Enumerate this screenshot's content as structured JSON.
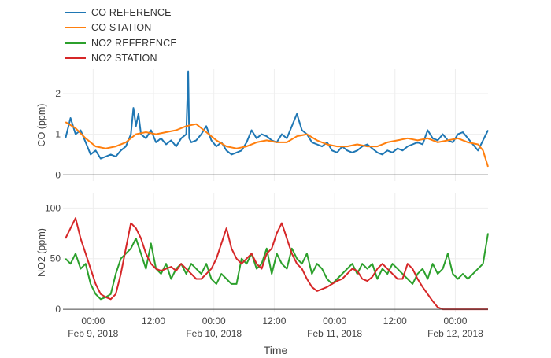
{
  "legend": [
    {
      "label": "CO REFERENCE",
      "color": "#1f77b4"
    },
    {
      "label": "CO STATION",
      "color": "#ff7f0e"
    },
    {
      "label": "NO2 REFERENCE",
      "color": "#2ca02c"
    },
    {
      "label": "NO2 STATION",
      "color": "#d62728"
    }
  ],
  "chart_data": [
    {
      "type": "line",
      "ylabel": "CO (ppm)",
      "xlabel": "",
      "ylim": [
        -0.15,
        2.6
      ],
      "yticks": [
        0,
        1,
        2
      ],
      "grid": true,
      "series": [
        {
          "name": "CO REFERENCE",
          "color": "#1f77b4",
          "x": [
            -5.5,
            -4.5,
            -3.5,
            -2.5,
            -1.5,
            -0.5,
            0.5,
            1.5,
            2.5,
            3.5,
            4.5,
            5.5,
            6.5,
            7.5,
            8,
            8.5,
            9,
            9.5,
            10.5,
            11.5,
            12.5,
            13.5,
            14.5,
            15.5,
            16.5,
            17.5,
            18.5,
            18.9,
            19.1,
            19.5,
            20.5,
            21.5,
            22.5,
            23.5,
            24.5,
            25.5,
            26.5,
            27.5,
            28.5,
            29.5,
            30.5,
            31.5,
            32.5,
            33.5,
            34.5,
            35.5,
            36.5,
            37.5,
            38.5,
            39.5,
            40.5,
            41.5,
            42.5,
            43.5,
            44.5,
            45.5,
            46.5,
            47.5,
            48.5,
            49.5,
            50.5,
            51.5,
            52.5,
            53.5,
            54.5,
            55.5,
            56.5,
            57.5,
            58.5,
            59.5,
            60.5,
            61.5,
            62.5,
            63.5,
            64.5,
            65.5,
            66.5,
            67.5,
            68.5,
            69.5,
            70.5,
            71.5,
            72.5,
            73.5,
            74.5,
            75.5,
            76.5,
            77.5,
            78.5
          ],
          "y": [
            0.9,
            1.4,
            1.0,
            1.1,
            0.8,
            0.5,
            0.6,
            0.4,
            0.45,
            0.5,
            0.45,
            0.6,
            0.7,
            1.0,
            1.65,
            1.2,
            1.5,
            1.0,
            0.9,
            1.1,
            0.8,
            0.9,
            0.75,
            0.85,
            0.7,
            0.9,
            1.0,
            2.55,
            0.9,
            0.8,
            0.85,
            1.0,
            1.2,
            0.85,
            0.7,
            0.8,
            0.6,
            0.5,
            0.55,
            0.6,
            0.8,
            1.1,
            0.9,
            1.0,
            0.95,
            0.85,
            0.8,
            1.0,
            0.9,
            1.2,
            1.5,
            1.1,
            1.0,
            0.8,
            0.75,
            0.7,
            0.8,
            0.6,
            0.55,
            0.7,
            0.6,
            0.55,
            0.6,
            0.7,
            0.75,
            0.65,
            0.55,
            0.5,
            0.6,
            0.55,
            0.65,
            0.6,
            0.7,
            0.75,
            0.8,
            0.75,
            1.1,
            0.9,
            0.85,
            1.0,
            0.85,
            0.8,
            1.0,
            1.05,
            0.9,
            0.75,
            0.6,
            0.85,
            1.1
          ]
        },
        {
          "name": "CO STATION",
          "color": "#ff7f0e",
          "x": [
            -5.5,
            -3.5,
            -1.5,
            0.5,
            2.5,
            4.5,
            6.5,
            8.5,
            10.5,
            12.5,
            14.5,
            16.5,
            18.5,
            20.5,
            22.5,
            24.5,
            26.5,
            28.5,
            30.5,
            32.5,
            34.5,
            36.5,
            38.5,
            40.5,
            42.5,
            44.5,
            46.5,
            48.5,
            50.5,
            52.5,
            54.5,
            56.5,
            58.5,
            60.5,
            62.5,
            64.5,
            66.5,
            68.5,
            70.5,
            72.5,
            74.5,
            76.5,
            77.5,
            78.5
          ],
          "y": [
            1.3,
            1.15,
            0.9,
            0.7,
            0.65,
            0.7,
            0.8,
            1.0,
            1.05,
            1.0,
            1.05,
            1.1,
            1.2,
            1.25,
            1.05,
            0.85,
            0.7,
            0.65,
            0.7,
            0.8,
            0.85,
            0.8,
            0.8,
            0.95,
            1.0,
            0.85,
            0.75,
            0.7,
            0.7,
            0.75,
            0.7,
            0.7,
            0.8,
            0.85,
            0.9,
            0.85,
            0.9,
            0.8,
            0.85,
            0.9,
            0.8,
            0.75,
            0.6,
            0.2
          ]
        }
      ]
    },
    {
      "type": "line",
      "ylabel": "NO2 (ppm)",
      "xlabel": "Time",
      "ylim": [
        -3,
        115
      ],
      "yticks": [
        0,
        50,
        100
      ],
      "xticks": [
        {
          "h": 0,
          "time": "00:00",
          "date": "Feb 9, 2018"
        },
        {
          "h": 12,
          "time": "12:00",
          "date": ""
        },
        {
          "h": 24,
          "time": "00:00",
          "date": "Feb 10, 2018"
        },
        {
          "h": 36,
          "time": "12:00",
          "date": ""
        },
        {
          "h": 48,
          "time": "00:00",
          "date": "Feb 11, 2018"
        },
        {
          "h": 60,
          "time": "12:00",
          "date": ""
        },
        {
          "h": 72,
          "time": "00:00",
          "date": "Feb 12, 2018"
        }
      ],
      "x_unit": "hours from Feb 9, 2018 00:00",
      "grid": true,
      "series": [
        {
          "name": "NO2 REFERENCE",
          "color": "#2ca02c",
          "x": [
            -5.5,
            -4.5,
            -3.5,
            -2.5,
            -1.5,
            -0.5,
            0.5,
            1.5,
            2.5,
            3.5,
            4.5,
            5.5,
            6.5,
            7.5,
            8.5,
            9.5,
            10.5,
            11.5,
            12.5,
            13.5,
            14.5,
            15.5,
            16.5,
            17.5,
            18.5,
            19.5,
            20.5,
            21.5,
            22.5,
            23.5,
            24.5,
            25.5,
            26.5,
            27.5,
            28.5,
            29.5,
            30.5,
            31.5,
            32.5,
            33.5,
            34.5,
            35.5,
            36.5,
            37.5,
            38.5,
            39.5,
            40.5,
            41.5,
            42.5,
            43.5,
            44.5,
            45.5,
            46.5,
            47.5,
            48.5,
            49.5,
            50.5,
            51.5,
            52.5,
            53.5,
            54.5,
            55.5,
            56.5,
            57.5,
            58.5,
            59.5,
            60.5,
            61.5,
            62.5,
            63.5,
            64.5,
            65.5,
            66.5,
            67.5,
            68.5,
            69.5,
            70.5,
            71.5,
            72.5,
            73.5,
            74.5,
            75.5,
            76.5,
            77.5,
            78.5
          ],
          "y": [
            50,
            45,
            55,
            40,
            45,
            25,
            15,
            10,
            12,
            15,
            35,
            50,
            55,
            60,
            70,
            55,
            40,
            65,
            40,
            35,
            45,
            30,
            40,
            45,
            35,
            45,
            40,
            35,
            45,
            30,
            25,
            35,
            30,
            25,
            25,
            50,
            45,
            55,
            40,
            45,
            60,
            35,
            55,
            45,
            40,
            60,
            50,
            45,
            55,
            35,
            45,
            40,
            30,
            25,
            30,
            35,
            40,
            45,
            35,
            45,
            40,
            45,
            30,
            40,
            35,
            45,
            40,
            35,
            30,
            25,
            35,
            40,
            30,
            45,
            35,
            40,
            55,
            35,
            30,
            35,
            30,
            35,
            40,
            45,
            75
          ]
        },
        {
          "name": "NO2 STATION",
          "color": "#d62728",
          "x": [
            -5.5,
            -4.5,
            -3.5,
            -2.5,
            -1.5,
            -0.5,
            0.5,
            1.5,
            2.5,
            3.5,
            4.5,
            5.5,
            6.5,
            7.5,
            8.5,
            9.5,
            10.5,
            11.5,
            12.5,
            13.5,
            14.5,
            15.5,
            16.5,
            17.5,
            18.5,
            19.5,
            20.5,
            21.5,
            22.5,
            23.5,
            24.5,
            25.5,
            26.5,
            27.5,
            28.5,
            29.5,
            30.5,
            31.5,
            32.5,
            33.5,
            34.5,
            35.5,
            36.5,
            37.5,
            38.5,
            39.5,
            40.5,
            41.5,
            42.5,
            43.5,
            44.5,
            45.5,
            46.5,
            47.5,
            48.5,
            49.5,
            50.5,
            51.5,
            52.5,
            53.5,
            54.5,
            55.5,
            56.5,
            57.5,
            58.5,
            59.5,
            60.5,
            61.5,
            62.5,
            63.5,
            64.5,
            65.5,
            66.5,
            67.5,
            68.5,
            69.5,
            70.5,
            71.5,
            72.5,
            73.5,
            74.5,
            75.5,
            76.5,
            77.5,
            78.5
          ],
          "y": [
            70,
            80,
            90,
            70,
            55,
            40,
            25,
            15,
            12,
            10,
            15,
            35,
            60,
            85,
            80,
            70,
            55,
            45,
            40,
            38,
            40,
            42,
            38,
            45,
            40,
            35,
            30,
            30,
            35,
            40,
            50,
            65,
            80,
            60,
            50,
            45,
            50,
            55,
            45,
            40,
            55,
            60,
            75,
            85,
            70,
            55,
            45,
            40,
            30,
            22,
            18,
            20,
            22,
            25,
            28,
            30,
            35,
            40,
            38,
            30,
            28,
            32,
            40,
            45,
            40,
            35,
            30,
            30,
            45,
            40,
            30,
            22,
            15,
            8,
            2,
            0,
            0,
            0,
            0,
            0,
            0,
            0,
            0,
            0,
            0
          ]
        }
      ]
    }
  ]
}
